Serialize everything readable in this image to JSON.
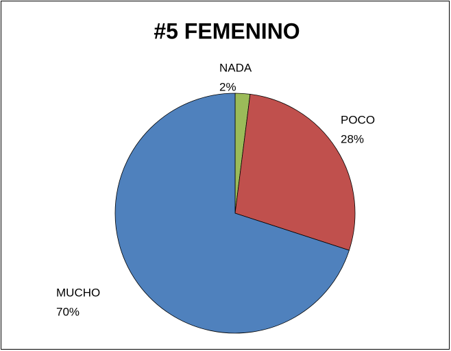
{
  "chart_data": {
    "type": "pie",
    "title": "#5 FEMENINO",
    "categories": [
      "NADA",
      "POCO",
      "MUCHO"
    ],
    "values": [
      2,
      28,
      70
    ],
    "value_labels": [
      "2%",
      "28%",
      "70%"
    ],
    "colors": [
      "#9bbb59",
      "#c0504d",
      "#4f81bd"
    ]
  }
}
